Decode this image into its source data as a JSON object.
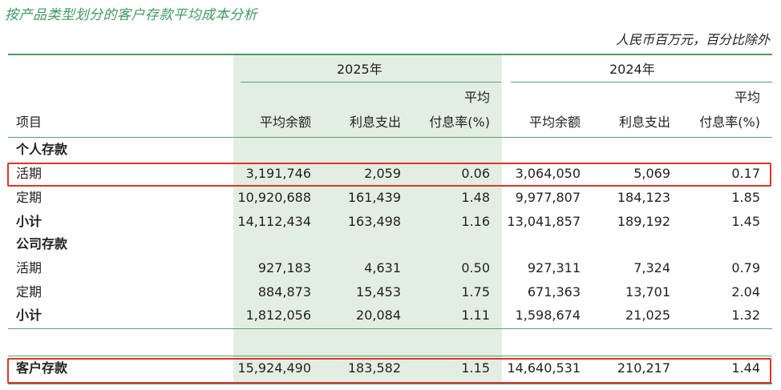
{
  "title": "按产品类型划分的客户存款平均成本分析",
  "unit": "人民币百万元，百分比除外",
  "years": [
    "2025年",
    "2024年"
  ],
  "headers": {
    "item": "项目",
    "avg_balance": "平均余额",
    "interest": "利息支出",
    "rate_line1": "平均",
    "rate_line2": "付息率(%)"
  },
  "sections": {
    "personal": "个人存款",
    "corporate": "公司存款"
  },
  "rows": {
    "p_demand": {
      "label": "活期",
      "v": [
        "3,191,746",
        "2,059",
        "0.06",
        "3,064,050",
        "5,069",
        "0.17"
      ]
    },
    "p_time": {
      "label": "定期",
      "v": [
        "10,920,688",
        "161,439",
        "1.48",
        "9,977,807",
        "184,123",
        "1.85"
      ]
    },
    "p_sub": {
      "label": "小计",
      "v": [
        "14,112,434",
        "163,498",
        "1.16",
        "13,041,857",
        "189,192",
        "1.45"
      ]
    },
    "c_demand": {
      "label": "活期",
      "v": [
        "927,183",
        "4,631",
        "0.50",
        "927,311",
        "7,324",
        "0.79"
      ]
    },
    "c_time": {
      "label": "定期",
      "v": [
        "884,873",
        "15,453",
        "1.75",
        "671,363",
        "13,701",
        "2.04"
      ]
    },
    "c_sub": {
      "label": "小计",
      "v": [
        "1,812,056",
        "20,084",
        "1.11",
        "1,598,674",
        "21,025",
        "1.32"
      ]
    },
    "total": {
      "label": "客户存款",
      "v": [
        "15,924,490",
        "183,582",
        "1.15",
        "14,640,531",
        "210,217",
        "1.44"
      ]
    }
  },
  "highlight_color": "#e0342a",
  "accent_color": "#4a9a66"
}
